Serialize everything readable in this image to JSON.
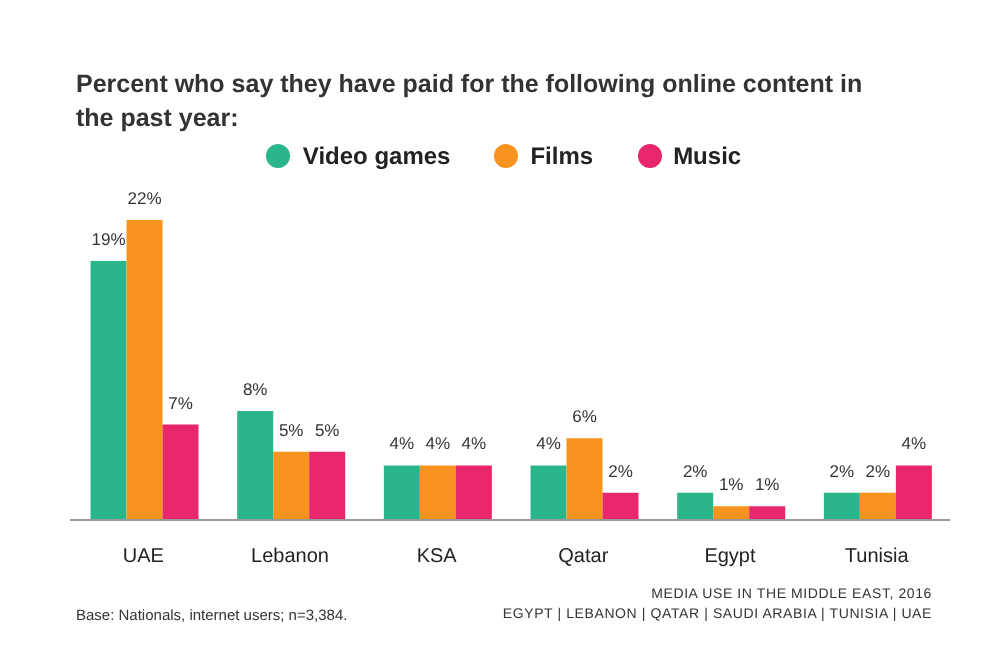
{
  "chart_data": {
    "type": "bar",
    "title": "Percent who say they have paid for the following online content in the past year:",
    "categories": [
      "UAE",
      "Lebanon",
      "KSA",
      "Qatar",
      "Egypt",
      "Tunisia"
    ],
    "series": [
      {
        "name": "Video games",
        "color": "#2bb58a",
        "values": [
          19,
          8,
          4,
          4,
          2,
          2
        ],
        "value_labels": [
          "19%",
          "8%",
          "4%",
          "4%",
          "2%",
          "2%"
        ]
      },
      {
        "name": "Films",
        "color": "#f7931e",
        "values": [
          22,
          5,
          4,
          6,
          1,
          2
        ],
        "value_labels": [
          "22%",
          "5%",
          "4%",
          "6%",
          "1%",
          "2%"
        ]
      },
      {
        "name": "Music",
        "color": "#e8266b",
        "values": [
          7,
          5,
          4,
          2,
          1,
          4
        ],
        "value_labels": [
          "7%",
          "5%",
          "4%",
          "2%",
          "1%",
          "4%"
        ]
      }
    ],
    "legend": "top",
    "grid": false,
    "annotations": [
      "Base: Nationals, internet users; n=3,384.",
      "MEDIA USE IN THE MIDDLE EAST, 2016",
      "EGYPT | LEBANON | QATAR | SAUDI ARABIA | TUNISIA | UAE"
    ]
  }
}
